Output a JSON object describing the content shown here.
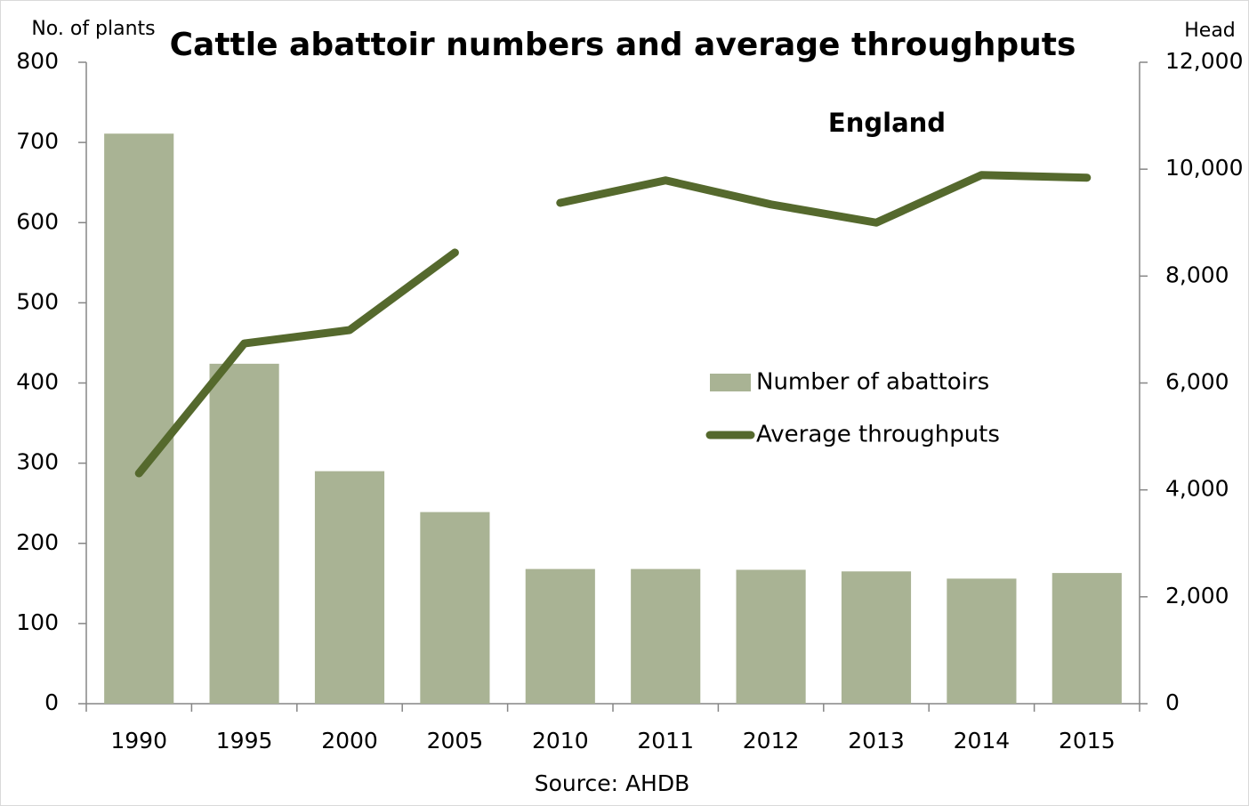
{
  "chart_data": {
    "type": "bar_line",
    "title": "Cattle abattoir numbers and average throughputs",
    "subtitle": "England",
    "y_label": "No. of plants",
    "y2_label": "Head",
    "source": "Source: AHDB",
    "categories": [
      "1990",
      "1995",
      "2000",
      "2005",
      "2010",
      "2011",
      "2012",
      "2013",
      "2014",
      "2015"
    ],
    "series": [
      {
        "name": "Number of abattoirs",
        "type": "bar",
        "color": "#a9b394",
        "values": [
          711,
          424,
          290,
          239,
          168,
          168,
          167,
          165,
          156,
          163
        ]
      },
      {
        "name": "Average throughputs",
        "type": "line",
        "axis": "y2",
        "color": "#55692d",
        "values": [
          4310,
          6740,
          6990,
          8440,
          9370,
          9790,
          9340,
          9000,
          9890,
          9840
        ]
      }
    ],
    "line_break_before": 4,
    "ylim": [
      0,
      800
    ],
    "yticks": [
      0,
      100,
      200,
      300,
      400,
      500,
      600,
      700,
      800
    ],
    "y2lim": [
      0,
      12000
    ],
    "y2ticks": [
      0,
      {
        "value": 2000,
        "label": "2,000"
      },
      {
        "value": 4000,
        "label": "4,000"
      },
      {
        "value": 6000,
        "label": "6,000"
      },
      {
        "value": 8000,
        "label": "8,000"
      },
      {
        "value": 10000,
        "label": "10,000"
      },
      {
        "value": 12000,
        "label": "12,000"
      }
    ],
    "grid": false
  }
}
